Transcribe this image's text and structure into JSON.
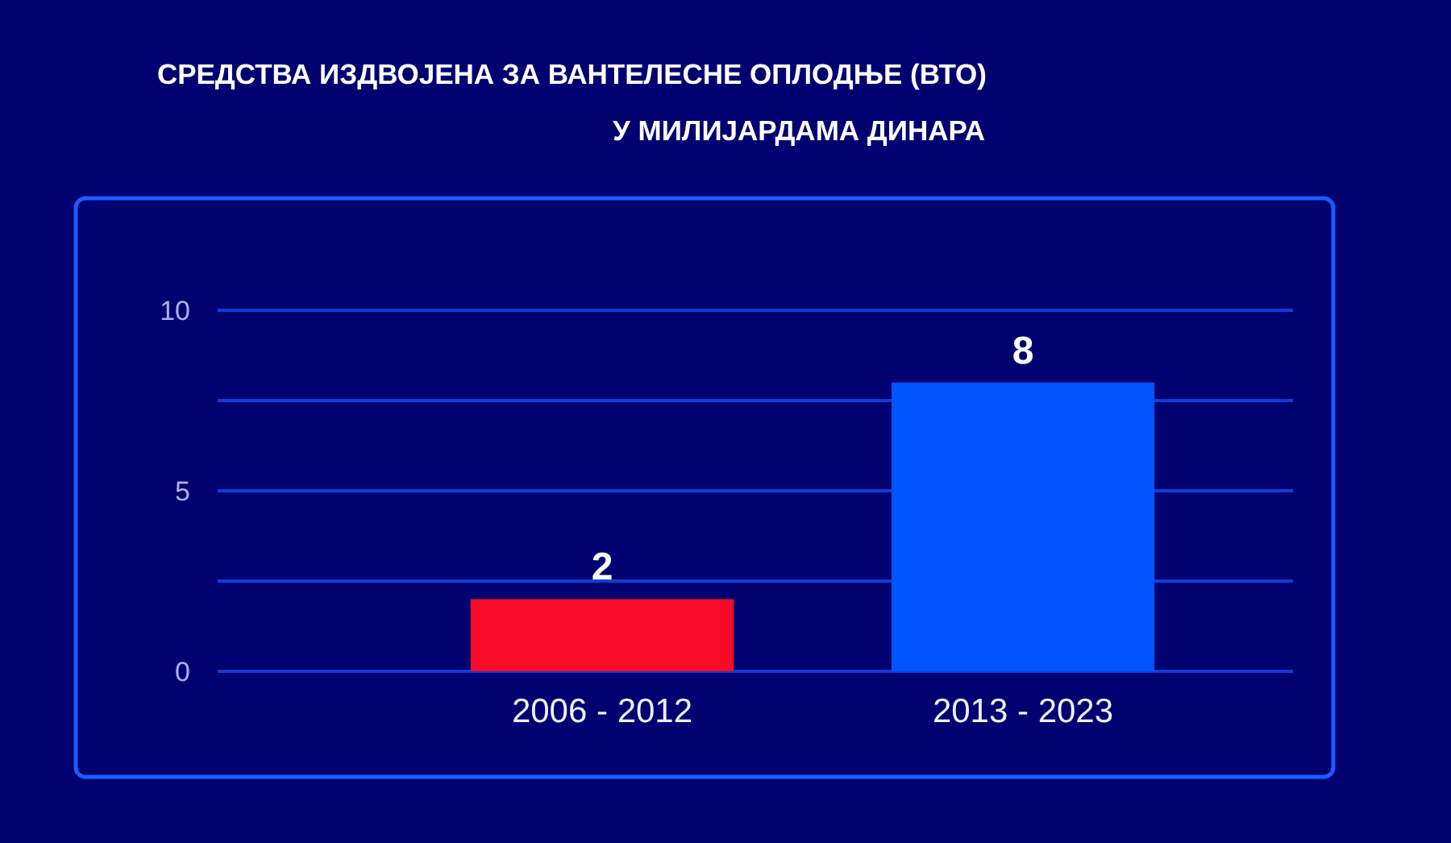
{
  "chart_data": {
    "type": "bar",
    "title": "СРЕДСТВА ИЗДВОЈЕНА ЗА ВАНТЕЛЕСНЕ ОПЛОДЊЕ (ВТО)",
    "subtitle": "У МИЛИЈАРДАМА ДИНАРА",
    "categories": [
      "2006 - 2012",
      "2013 - 2023"
    ],
    "values": [
      2,
      8
    ],
    "colors": [
      "#f50a28",
      "#0055ff"
    ],
    "ylim": [
      0,
      10
    ],
    "yticks": [
      0,
      {
        "value": 2.5,
        "label": null
      },
      5,
      {
        "value": 7.5,
        "label": null
      },
      10
    ],
    "grid": "y",
    "data_labels": true
  }
}
